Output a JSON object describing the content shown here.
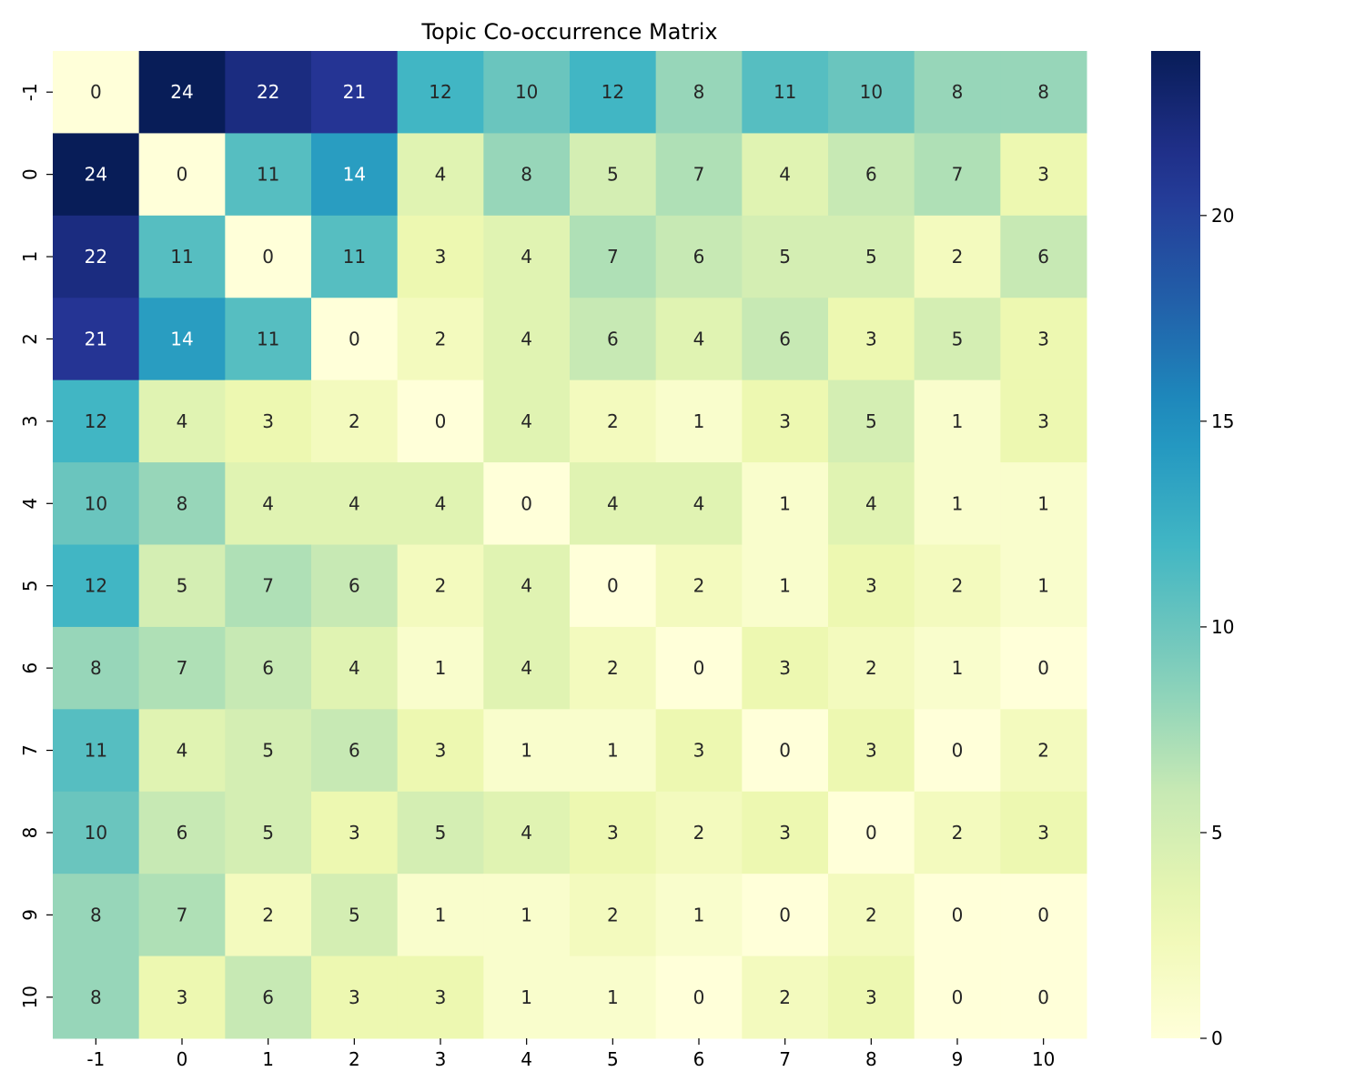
{
  "chart_data": {
    "type": "heatmap",
    "title": "Topic Co-occurrence Matrix",
    "xlabel": "",
    "ylabel": "",
    "x_categories": [
      "-1",
      "0",
      "1",
      "2",
      "3",
      "4",
      "5",
      "6",
      "7",
      "8",
      "9",
      "10"
    ],
    "y_categories": [
      "-1",
      "0",
      "1",
      "2",
      "3",
      "4",
      "5",
      "6",
      "7",
      "8",
      "9",
      "10"
    ],
    "values": [
      [
        0,
        24,
        22,
        21,
        12,
        10,
        12,
        8,
        11,
        10,
        8,
        8
      ],
      [
        24,
        0,
        11,
        14,
        4,
        8,
        5,
        7,
        4,
        6,
        7,
        3
      ],
      [
        22,
        11,
        0,
        11,
        3,
        4,
        7,
        6,
        5,
        5,
        2,
        6
      ],
      [
        21,
        14,
        11,
        0,
        2,
        4,
        6,
        4,
        6,
        3,
        5,
        3
      ],
      [
        12,
        4,
        3,
        2,
        0,
        4,
        2,
        1,
        3,
        5,
        1,
        3
      ],
      [
        10,
        8,
        4,
        4,
        4,
        0,
        4,
        4,
        1,
        4,
        1,
        1
      ],
      [
        12,
        5,
        7,
        6,
        2,
        4,
        0,
        2,
        1,
        3,
        2,
        1
      ],
      [
        8,
        7,
        6,
        4,
        1,
        4,
        2,
        0,
        3,
        2,
        1,
        0
      ],
      [
        11,
        4,
        5,
        6,
        3,
        1,
        1,
        3,
        0,
        3,
        0,
        2
      ],
      [
        10,
        6,
        5,
        3,
        5,
        4,
        3,
        2,
        3,
        0,
        2,
        3
      ],
      [
        8,
        7,
        2,
        5,
        1,
        1,
        2,
        1,
        0,
        2,
        0,
        0
      ],
      [
        8,
        3,
        6,
        3,
        3,
        1,
        1,
        0,
        2,
        3,
        0,
        0
      ]
    ],
    "colormap": "YlGnBu",
    "vmin": 0,
    "vmax": 24,
    "colorbar_ticks": [
      0,
      5,
      10,
      15,
      20
    ],
    "annotated": true,
    "grid": false
  }
}
